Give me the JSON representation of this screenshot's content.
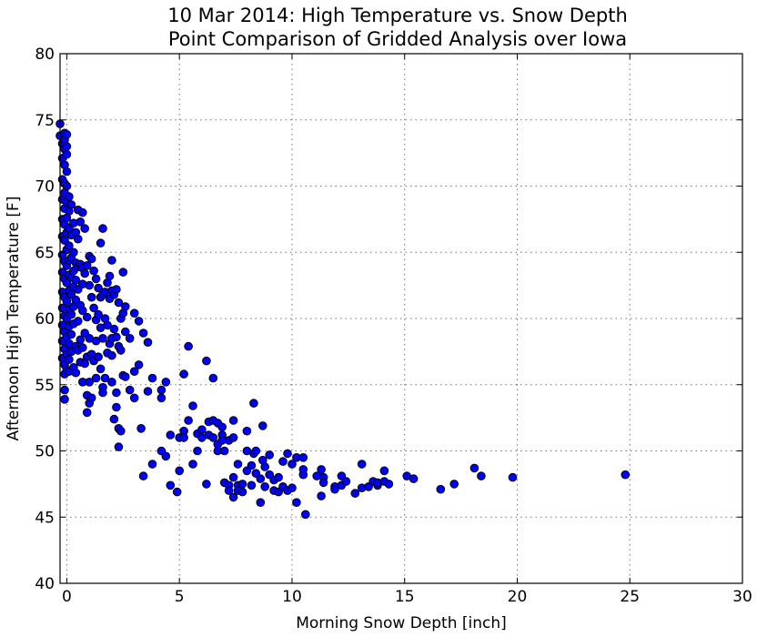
{
  "chart_data": {
    "type": "scatter",
    "title": "10 Mar 2014: High Temperature  vs. Snow Depth",
    "subtitle": "Point Comparison of Gridded Analysis over Iowa",
    "xlabel": "Morning Snow Depth [inch]",
    "ylabel": "Afternoon High Temperature [F]",
    "xlim": [
      -0.3,
      30
    ],
    "ylim": [
      40,
      80
    ],
    "xticks": [
      0,
      5,
      10,
      15,
      20,
      25,
      30
    ],
    "yticks": [
      40,
      45,
      50,
      55,
      60,
      65,
      70,
      75,
      80
    ],
    "grid": true,
    "marker_color": "#0000ff",
    "points": [
      [
        -0.3,
        74.7
      ],
      [
        -0.3,
        73.8
      ],
      [
        -0.2,
        73.2
      ],
      [
        -0.2,
        72.1
      ],
      [
        -0.2,
        70.5
      ],
      [
        -0.2,
        69.0
      ],
      [
        -0.2,
        67.5
      ],
      [
        -0.2,
        66.2
      ],
      [
        -0.2,
        64.8
      ],
      [
        -0.2,
        63.5
      ],
      [
        -0.2,
        62.0
      ],
      [
        -0.2,
        60.8
      ],
      [
        -0.2,
        59.5
      ],
      [
        -0.2,
        58.3
      ],
      [
        -0.2,
        57.0
      ],
      [
        -0.1,
        55.8
      ],
      [
        -0.1,
        54.6
      ],
      [
        -0.1,
        53.9
      ],
      [
        -0.1,
        74.0
      ],
      [
        -0.1,
        73.5
      ],
      [
        -0.1,
        72.8
      ],
      [
        -0.1,
        71.6
      ],
      [
        -0.1,
        70.2
      ],
      [
        -0.1,
        69.5
      ],
      [
        -0.1,
        68.3
      ],
      [
        -0.1,
        67.1
      ],
      [
        -0.1,
        65.9
      ],
      [
        -0.1,
        64.3
      ],
      [
        -0.1,
        63.0
      ],
      [
        -0.1,
        61.6
      ],
      [
        -0.1,
        60.2
      ],
      [
        -0.1,
        59.0
      ],
      [
        -0.1,
        57.7
      ],
      [
        -0.1,
        56.5
      ],
      [
        0.0,
        73.9
      ],
      [
        0.0,
        73.0
      ],
      [
        0.0,
        72.4
      ],
      [
        0.0,
        71.1
      ],
      [
        0.0,
        70.0
      ],
      [
        0.0,
        68.8
      ],
      [
        0.0,
        67.6
      ],
      [
        0.0,
        66.5
      ],
      [
        0.0,
        65.2
      ],
      [
        0.0,
        64.0
      ],
      [
        0.0,
        62.7
      ],
      [
        0.0,
        61.3
      ],
      [
        0.0,
        60.0
      ],
      [
        0.0,
        58.6
      ],
      [
        0.0,
        57.3
      ],
      [
        0.0,
        56.1
      ],
      [
        0.1,
        69.2
      ],
      [
        0.1,
        68.1
      ],
      [
        0.1,
        66.8
      ],
      [
        0.1,
        65.5
      ],
      [
        0.1,
        64.4
      ],
      [
        0.1,
        63.3
      ],
      [
        0.1,
        62.1
      ],
      [
        0.1,
        60.7
      ],
      [
        0.1,
        59.4
      ],
      [
        0.1,
        58.1
      ],
      [
        0.1,
        56.9
      ],
      [
        0.1,
        56.0
      ],
      [
        0.2,
        68.6
      ],
      [
        0.2,
        66.3
      ],
      [
        0.2,
        64.6
      ],
      [
        0.2,
        63.1
      ],
      [
        0.2,
        61.8
      ],
      [
        0.2,
        60.3
      ],
      [
        0.2,
        58.8
      ],
      [
        0.2,
        57.5
      ],
      [
        0.3,
        67.2
      ],
      [
        0.3,
        65.0
      ],
      [
        0.3,
        63.6
      ],
      [
        0.3,
        62.4
      ],
      [
        0.3,
        60.9
      ],
      [
        0.3,
        59.6
      ],
      [
        0.3,
        56.3
      ],
      [
        0.4,
        66.5
      ],
      [
        0.4,
        64.2
      ],
      [
        0.4,
        62.9
      ],
      [
        0.4,
        61.4
      ],
      [
        0.4,
        57.9
      ],
      [
        0.4,
        55.9
      ],
      [
        0.5,
        68.2
      ],
      [
        0.5,
        66.0
      ],
      [
        0.5,
        63.9
      ],
      [
        0.5,
        62.2
      ],
      [
        0.5,
        59.8
      ],
      [
        0.5,
        57.6
      ],
      [
        0.6,
        67.3
      ],
      [
        0.6,
        64.1
      ],
      [
        0.6,
        61.0
      ],
      [
        0.6,
        58.4
      ],
      [
        0.6,
        56.7
      ],
      [
        0.7,
        68.0
      ],
      [
        0.7,
        63.8
      ],
      [
        0.7,
        62.6
      ],
      [
        0.7,
        60.6
      ],
      [
        0.7,
        57.8
      ],
      [
        0.7,
        55.2
      ],
      [
        0.8,
        66.8
      ],
      [
        0.8,
        63.4
      ],
      [
        0.8,
        58.9
      ],
      [
        0.8,
        56.6
      ],
      [
        0.9,
        64.0
      ],
      [
        0.9,
        60.1
      ],
      [
        0.9,
        57.1
      ],
      [
        0.9,
        54.2
      ],
      [
        0.9,
        52.9
      ],
      [
        1.0,
        64.7
      ],
      [
        1.0,
        62.5
      ],
      [
        1.0,
        58.5
      ],
      [
        1.0,
        55.2
      ],
      [
        1.0,
        53.6
      ],
      [
        1.1,
        64.5
      ],
      [
        1.1,
        61.6
      ],
      [
        1.1,
        57.3
      ],
      [
        1.1,
        54.0
      ],
      [
        1.2,
        63.6
      ],
      [
        1.2,
        60.8
      ],
      [
        1.2,
        56.8
      ],
      [
        1.3,
        63.0
      ],
      [
        1.3,
        59.9
      ],
      [
        1.3,
        58.3
      ],
      [
        1.3,
        55.5
      ],
      [
        1.4,
        62.3
      ],
      [
        1.4,
        60.3
      ],
      [
        1.4,
        57.1
      ],
      [
        1.5,
        65.7
      ],
      [
        1.5,
        61.6
      ],
      [
        1.5,
        59.3
      ],
      [
        1.5,
        56.2
      ],
      [
        1.6,
        66.8
      ],
      [
        1.6,
        61.8
      ],
      [
        1.6,
        58.5
      ],
      [
        1.6,
        54.8
      ],
      [
        1.6,
        54.4
      ],
      [
        1.7,
        62.0
      ],
      [
        1.7,
        60.0
      ],
      [
        1.7,
        55.5
      ],
      [
        1.8,
        62.7
      ],
      [
        1.8,
        59.5
      ],
      [
        1.8,
        57.4
      ],
      [
        1.9,
        63.2
      ],
      [
        1.9,
        61.5
      ],
      [
        1.9,
        58.1
      ],
      [
        2.0,
        64.4
      ],
      [
        2.0,
        62.1
      ],
      [
        2.0,
        58.5
      ],
      [
        2.0,
        57.2
      ],
      [
        2.0,
        55.2
      ],
      [
        2.1,
        61.8
      ],
      [
        2.1,
        59.2
      ],
      [
        2.1,
        52.4
      ],
      [
        2.2,
        62.2
      ],
      [
        2.2,
        58.6
      ],
      [
        2.2,
        54.4
      ],
      [
        2.2,
        53.3
      ],
      [
        2.3,
        61.2
      ],
      [
        2.3,
        57.9
      ],
      [
        2.3,
        51.7
      ],
      [
        2.3,
        50.3
      ],
      [
        2.4,
        60.0
      ],
      [
        2.4,
        57.6
      ],
      [
        2.4,
        51.5
      ],
      [
        2.5,
        63.5
      ],
      [
        2.5,
        60.4
      ],
      [
        2.5,
        55.7
      ],
      [
        2.6,
        60.9
      ],
      [
        2.6,
        59.0
      ],
      [
        2.6,
        55.6
      ],
      [
        2.8,
        58.5
      ],
      [
        2.8,
        54.6
      ],
      [
        3.0,
        60.4
      ],
      [
        3.0,
        56.0
      ],
      [
        3.0,
        54.0
      ],
      [
        3.2,
        59.8
      ],
      [
        3.2,
        56.5
      ],
      [
        3.3,
        51.7
      ],
      [
        3.4,
        58.9
      ],
      [
        3.4,
        48.1
      ],
      [
        3.6,
        58.2
      ],
      [
        3.6,
        54.5
      ],
      [
        3.8,
        55.5
      ],
      [
        3.8,
        49.0
      ],
      [
        4.2,
        54.6
      ],
      [
        4.2,
        54.0
      ],
      [
        4.2,
        50.0
      ],
      [
        4.4,
        55.2
      ],
      [
        4.4,
        49.6
      ],
      [
        4.6,
        51.2
      ],
      [
        4.6,
        47.4
      ],
      [
        4.9,
        46.9
      ],
      [
        5.0,
        51.0
      ],
      [
        5.0,
        48.5
      ],
      [
        5.2,
        55.8
      ],
      [
        5.2,
        51.5
      ],
      [
        5.2,
        51.0
      ],
      [
        5.4,
        57.9
      ],
      [
        5.4,
        52.3
      ],
      [
        5.6,
        53.4
      ],
      [
        5.6,
        49.0
      ],
      [
        5.8,
        51.3
      ],
      [
        5.8,
        50.0
      ],
      [
        6.0,
        51.6
      ],
      [
        6.0,
        51.0
      ],
      [
        6.2,
        56.8
      ],
      [
        6.2,
        47.5
      ],
      [
        6.3,
        52.2
      ],
      [
        6.3,
        51.2
      ],
      [
        6.5,
        55.5
      ],
      [
        6.5,
        52.3
      ],
      [
        6.5,
        51.0
      ],
      [
        6.7,
        52.1
      ],
      [
        6.7,
        50.5
      ],
      [
        6.7,
        50.0
      ],
      [
        6.9,
        51.8
      ],
      [
        6.9,
        51.2
      ],
      [
        6.9,
        50.8
      ],
      [
        7.0,
        50.0
      ],
      [
        7.0,
        47.6
      ],
      [
        7.2,
        47.4
      ],
      [
        7.2,
        47.0
      ],
      [
        7.2,
        50.8
      ],
      [
        7.4,
        51.0
      ],
      [
        7.4,
        52.3
      ],
      [
        7.4,
        48.0
      ],
      [
        7.4,
        46.5
      ],
      [
        7.6,
        47.4
      ],
      [
        7.6,
        47.0
      ],
      [
        7.6,
        49.0
      ],
      [
        7.8,
        47.5
      ],
      [
        7.8,
        46.9
      ],
      [
        8.0,
        51.5
      ],
      [
        8.0,
        50.0
      ],
      [
        8.0,
        48.5
      ],
      [
        8.2,
        48.9
      ],
      [
        8.2,
        47.4
      ],
      [
        8.3,
        53.6
      ],
      [
        8.3,
        49.8
      ],
      [
        8.4,
        50.0
      ],
      [
        8.4,
        48.3
      ],
      [
        8.6,
        47.9
      ],
      [
        8.6,
        46.1
      ],
      [
        8.7,
        49.3
      ],
      [
        8.7,
        51.9
      ],
      [
        8.8,
        48.8
      ],
      [
        8.8,
        47.3
      ],
      [
        9.0,
        49.7
      ],
      [
        9.0,
        48.2
      ],
      [
        9.2,
        47.8
      ],
      [
        9.2,
        47.0
      ],
      [
        9.4,
        48.0
      ],
      [
        9.4,
        46.9
      ],
      [
        9.6,
        49.2
      ],
      [
        9.6,
        47.3
      ],
      [
        9.8,
        49.8
      ],
      [
        9.8,
        47.0
      ],
      [
        10.0,
        49.0
      ],
      [
        10.0,
        47.2
      ],
      [
        10.2,
        46.1
      ],
      [
        10.2,
        49.5
      ],
      [
        10.5,
        48.6
      ],
      [
        10.5,
        49.5
      ],
      [
        10.5,
        48.2
      ],
      [
        10.6,
        45.2
      ],
      [
        11.1,
        48.1
      ],
      [
        11.3,
        46.6
      ],
      [
        11.3,
        48.6
      ],
      [
        11.4,
        48.0
      ],
      [
        11.4,
        47.6
      ],
      [
        11.9,
        47.3
      ],
      [
        11.9,
        47.1
      ],
      [
        12.2,
        48.1
      ],
      [
        12.2,
        47.4
      ],
      [
        12.4,
        47.7
      ],
      [
        12.8,
        46.8
      ],
      [
        13.1,
        47.2
      ],
      [
        13.1,
        49.0
      ],
      [
        13.4,
        47.3
      ],
      [
        13.6,
        47.7
      ],
      [
        13.8,
        47.4
      ],
      [
        13.8,
        47.6
      ],
      [
        14.1,
        48.5
      ],
      [
        14.1,
        47.7
      ],
      [
        14.3,
        47.5
      ],
      [
        15.1,
        48.1
      ],
      [
        15.4,
        47.9
      ],
      [
        16.6,
        47.1
      ],
      [
        17.2,
        47.5
      ],
      [
        18.1,
        48.7
      ],
      [
        18.4,
        48.1
      ],
      [
        19.8,
        48.0
      ],
      [
        24.8,
        48.2
      ]
    ]
  }
}
